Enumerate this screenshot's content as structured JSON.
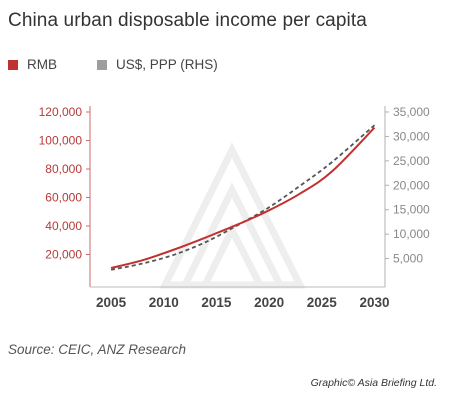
{
  "title": "China urban disposable income per capita",
  "legend": [
    {
      "label": "RMB",
      "color": "#c0312f"
    },
    {
      "label": "US$, PPP (RHS)",
      "color": "#9e9e9e"
    }
  ],
  "source": "Source: CEIC, ANZ Research",
  "credit": "Graphic© Asia Briefing Ltd.",
  "chart_data": {
    "type": "line",
    "title": "China urban disposable income per capita",
    "x_ticks": [
      "2005",
      "2010",
      "2015",
      "2020",
      "2025",
      "2030"
    ],
    "y_left_ticks": [
      "20,000",
      "40,000",
      "60,000",
      "80,000",
      "100,000",
      "120,000"
    ],
    "y_right_ticks": [
      "5,000",
      "10,000",
      "15,000",
      "20,000",
      "25,000",
      "30,000",
      "35,000"
    ],
    "ylim_left": [
      0,
      120000
    ],
    "ylim_right": [
      0,
      35000
    ],
    "xlim": [
      2003,
      2031
    ],
    "grid": false,
    "legend_position": "top",
    "series": [
      {
        "name": "RMB",
        "axis": "left",
        "color": "#c0312f",
        "style": "solid",
        "x": [
          2005,
          2008,
          2011,
          2014,
          2017,
          2020,
          2023,
          2026,
          2030
        ],
        "y": [
          10500,
          16000,
          23500,
          32000,
          41000,
          51000,
          63000,
          78500,
          109000
        ]
      },
      {
        "name": "US$, PPP (RHS)",
        "axis": "right",
        "color": "#555555",
        "style": "dashed",
        "x": [
          2005,
          2008,
          2011,
          2014,
          2017,
          2020,
          2023,
          2026,
          2030
        ],
        "y": [
          2700,
          4000,
          5800,
          8400,
          11800,
          15500,
          20000,
          24800,
          32300
        ]
      }
    ]
  }
}
